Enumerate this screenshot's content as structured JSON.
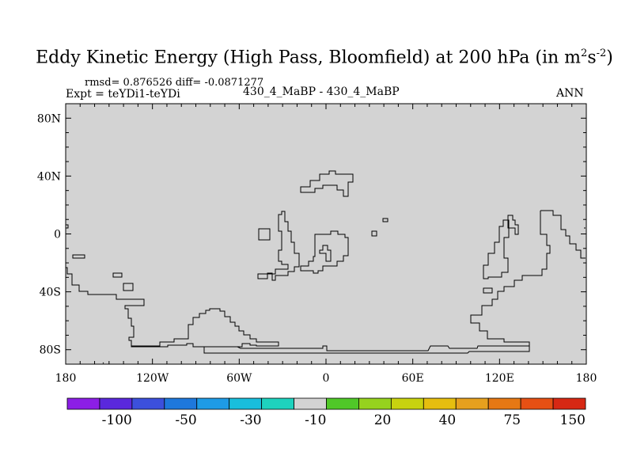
{
  "title": {
    "main": "Eddy Kinetic Energy (High Pass, Bloomfield) at 200 hPa (in m",
    "sup1": "2",
    "mid": "s",
    "sup2": "-2",
    "close": ")"
  },
  "stats": "rmsd= 0.876526 diff= -0.0871277",
  "expt": "Expt = teYDi1-teYDi",
  "case": "430_4_MaBP - 430_4_MaBP",
  "season": "ANN",
  "chart_data": {
    "type": "contour_map",
    "projection": "cylindrical_equidistant",
    "x_axis": {
      "range": [
        -180,
        180
      ],
      "ticks": [
        "180",
        "120W",
        "60W",
        "0",
        "60E",
        "120E",
        "180"
      ],
      "tick_values": [
        -180,
        -120,
        -60,
        0,
        60,
        120,
        180
      ]
    },
    "y_axis": {
      "range": [
        -90,
        90
      ],
      "ticks": [
        "80N",
        "40N",
        "0",
        "40S",
        "80S"
      ],
      "tick_values": [
        80,
        40,
        0,
        -40,
        -80
      ]
    },
    "field_fill": "uniform (all values in -10 to 10 bin)",
    "fill_color": "#d3d3d3",
    "contour_overlay": "coastlines"
  },
  "colorbar": {
    "colors": [
      "#8c1ee6",
      "#5a28dc",
      "#3c50dc",
      "#1e78dc",
      "#1e9be6",
      "#19bedc",
      "#1ed2be",
      "#d3d3d3",
      "#50c828",
      "#96d21e",
      "#c8d20f",
      "#e6be0f",
      "#e6a01e",
      "#e67814",
      "#e65014",
      "#d72814"
    ],
    "labels": [
      {
        "text": "-100",
        "boundary": 2
      },
      {
        "text": "-50",
        "boundary": 4
      },
      {
        "text": "-30",
        "boundary": 6
      },
      {
        "text": "-10",
        "boundary": 8
      },
      {
        "text": "20",
        "boundary": 10
      },
      {
        "text": "40",
        "boundary": 12
      },
      {
        "text": "75",
        "boundary": 14
      },
      {
        "text": "150",
        "boundary": 16
      }
    ]
  }
}
